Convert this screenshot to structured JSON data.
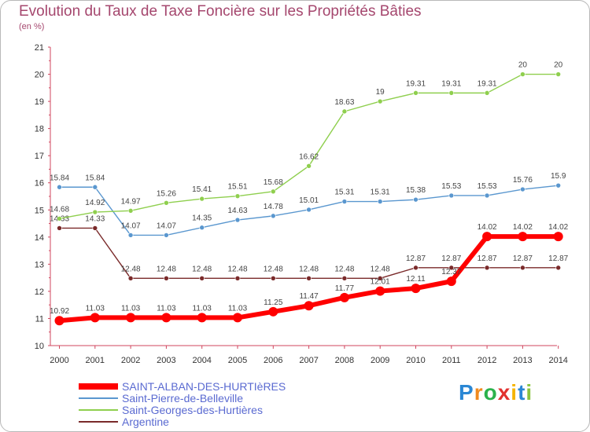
{
  "title": "Evolution du Taux de Taxe Foncière sur les Propriétés Bâties",
  "unit": "(en %)",
  "logo": {
    "text": "Proxiti",
    "colors": [
      "#2a87d4",
      "#f08a1e",
      "#2bb24c",
      "#e2322f",
      "#f5b400",
      "#2a87d4",
      "#8ac43f"
    ]
  },
  "chart_data": {
    "type": "line",
    "title": "Evolution du Taux de Taxe Foncière sur les Propriétés Bâties",
    "ylabel": "(en %)",
    "xlabel": "",
    "ylim": [
      10,
      21
    ],
    "yticks": [
      "10",
      "11",
      "12",
      "13",
      "14",
      "15",
      "16",
      "17",
      "18",
      "19",
      "20",
      "21"
    ],
    "categories": [
      "2000",
      "2001",
      "2002",
      "2003",
      "2004",
      "2005",
      "2006",
      "2007",
      "2008",
      "2009",
      "2010",
      "2011",
      "2012",
      "2013",
      "2014"
    ],
    "series": [
      {
        "name": "Argentine",
        "color": "#7a2a2a",
        "values": [
          14.33,
          14.33,
          12.48,
          12.48,
          12.48,
          12.48,
          12.48,
          12.48,
          12.48,
          12.48,
          12.87,
          12.87,
          12.87,
          12.87,
          12.87
        ],
        "labels": [
          "14.33",
          "14.33",
          "12.48",
          "12.48",
          "12.48",
          "12.48",
          "12.48",
          "12.48",
          "12.48",
          "12.48",
          "12.87",
          "12.87",
          "12.87",
          "12.87",
          "12.87"
        ]
      },
      {
        "name": "Saint-Pierre-de-Belleville",
        "color": "#5a97cf",
        "values": [
          15.84,
          15.84,
          14.07,
          14.07,
          14.35,
          14.63,
          14.78,
          15.01,
          15.31,
          15.31,
          15.38,
          15.53,
          15.53,
          15.76,
          15.9
        ],
        "labels": [
          "15.84",
          "15.84",
          "14.07",
          "14.07",
          "14.35",
          "14.63",
          "14.78",
          "15.01",
          "15.31",
          "15.31",
          "15.38",
          "15.53",
          "15.53",
          "15.76",
          "15.9"
        ]
      },
      {
        "name": "Saint-Georges-des-Hurtières",
        "color": "#8fcf4e",
        "values": [
          14.68,
          14.92,
          14.97,
          15.26,
          15.41,
          15.51,
          15.68,
          16.62,
          18.63,
          19,
          19.31,
          19.31,
          19.31,
          20,
          20
        ],
        "labels": [
          "14.68",
          "14.92",
          "14.97",
          "15.26",
          "15.41",
          "15.51",
          "15.68",
          "16.62",
          "18.63",
          "19",
          "19.31",
          "19.31",
          "19.31",
          "20",
          "20"
        ]
      },
      {
        "name": "SAINT-ALBAN-DES-HURTIèRES",
        "color": "#ff0000",
        "values": [
          10.92,
          11.03,
          11.03,
          11.03,
          11.03,
          11.03,
          11.25,
          11.47,
          11.77,
          12.01,
          12.11,
          12.37,
          14.02,
          14.02,
          14.02
        ],
        "labels": [
          "10.92",
          "11.03",
          "11.03",
          "11.03",
          "11.03",
          "11.03",
          "11.25",
          "11.47",
          "11.77",
          "12.01",
          "12.11",
          "12.37",
          "14.02",
          "14.02",
          "14.02"
        ]
      }
    ],
    "legend": [
      "SAINT-ALBAN-DES-HURTIèRES",
      "Saint-Pierre-de-Belleville",
      "Saint-Georges-des-Hurtières",
      "Argentine"
    ],
    "legend_position": "bottom-left",
    "grid": false
  }
}
